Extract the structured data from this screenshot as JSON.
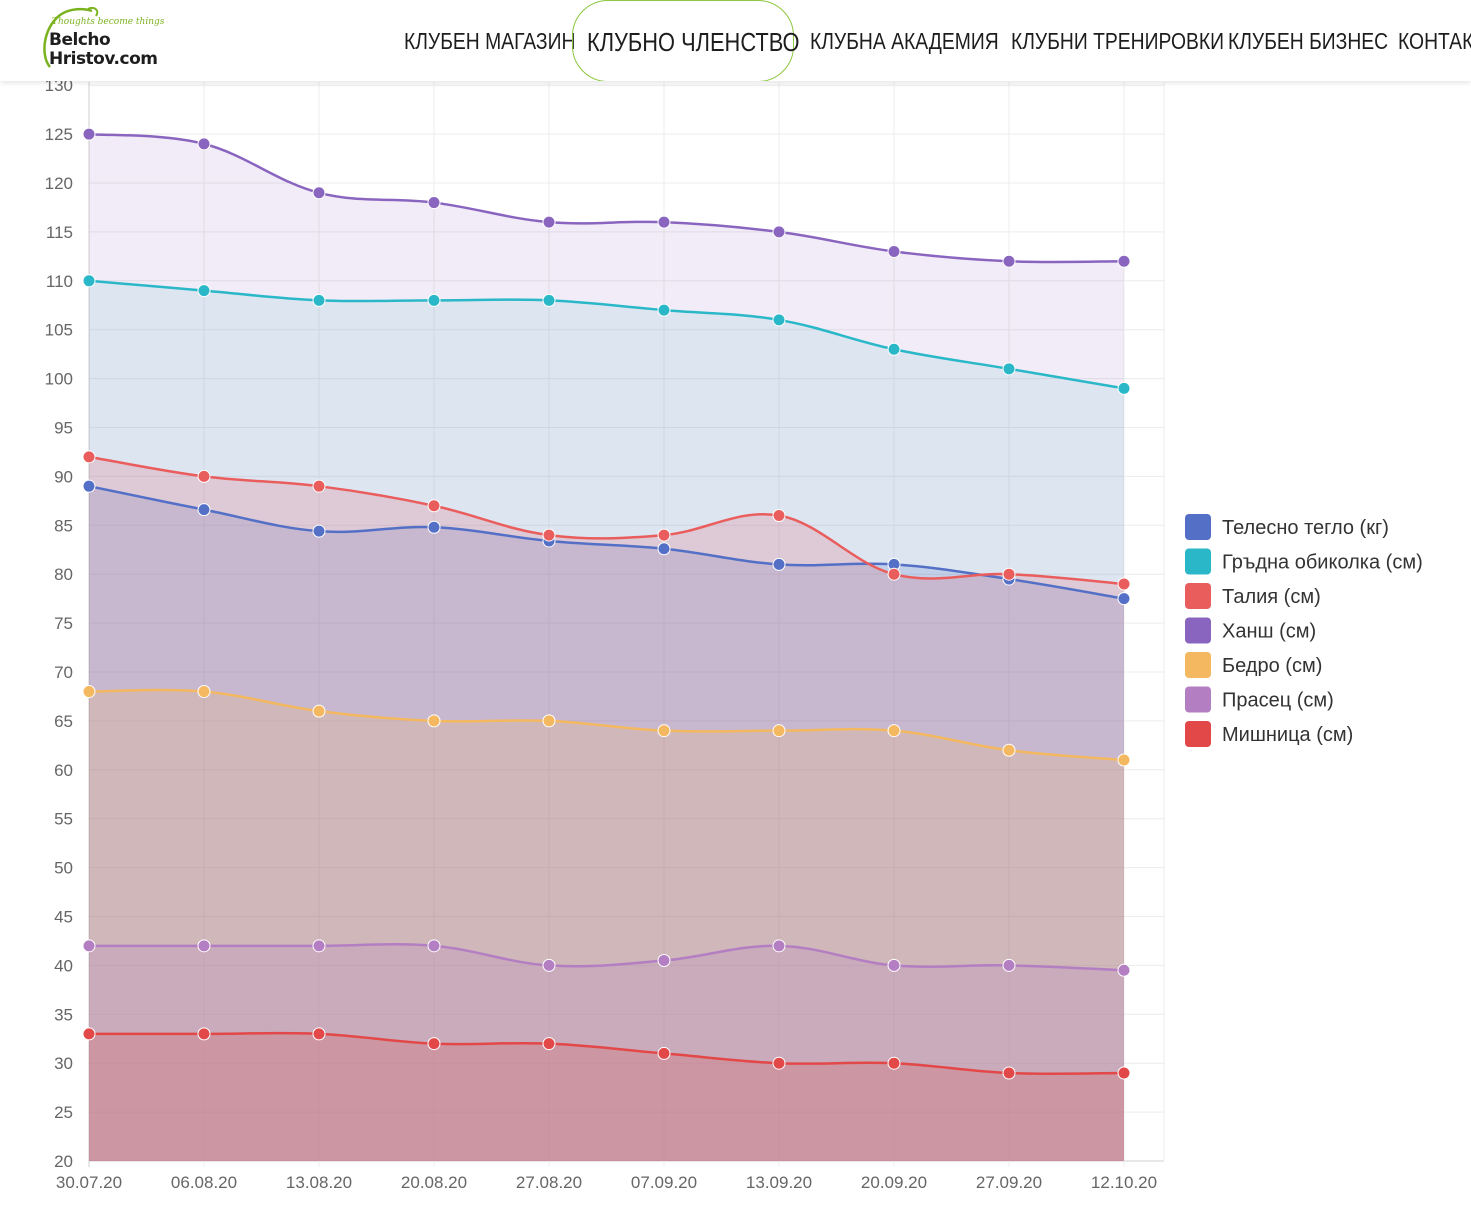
{
  "header": {
    "logo": {
      "tagline": "Thoughts become things",
      "line1": "Belcho",
      "line2": "Hristov.com"
    },
    "nav": [
      {
        "label": "КЛУБЕН МАГАЗИН",
        "active": false
      },
      {
        "label": "КЛУБНО ЧЛЕНСТВО",
        "active": true
      },
      {
        "label": "КЛУБНА АКАДЕМИЯ",
        "active": false
      },
      {
        "label": "КЛУБНИ ТРЕНИРОВКИ",
        "active": false
      },
      {
        "label": "КЛУБЕН БИЗНЕС",
        "active": false
      },
      {
        "label": "КОНТАКТ",
        "active": false
      }
    ]
  },
  "chart_data": {
    "type": "area",
    "categories": [
      "30.07.20",
      "06.08.20",
      "13.08.20",
      "20.08.20",
      "27.08.20",
      "07.09.20",
      "13.09.20",
      "20.09.20",
      "27.09.20",
      "12.10.20"
    ],
    "ylim": [
      20,
      130
    ],
    "yticks": [
      130,
      125,
      120,
      115,
      110,
      105,
      100,
      95,
      90,
      85,
      80,
      75,
      70,
      65,
      60,
      55,
      50,
      45,
      40,
      35,
      30,
      25,
      20
    ],
    "grid": true,
    "legend_position": "right",
    "series": [
      {
        "name": "Телесно тегло (кг)",
        "color": "#5470c6",
        "fill": "rgba(84,112,198,0.2)",
        "values": [
          89,
          86.6,
          84.4,
          84.8,
          83.4,
          82.6,
          81,
          81,
          79.5,
          77.5
        ]
      },
      {
        "name": "Гръдна обиколка (см)",
        "color": "#2ab8c8",
        "fill": "rgba(42,184,200,0.1)",
        "values": [
          110,
          109,
          108,
          108,
          108,
          107,
          106,
          103,
          101,
          99
        ]
      },
      {
        "name": "Талия (см)",
        "color": "#ea5d5d",
        "fill": "rgba(234,93,93,0.2)",
        "values": [
          92,
          90,
          89,
          87,
          84,
          84,
          86,
          80,
          80,
          79
        ]
      },
      {
        "name": "Ханш (см)",
        "color": "#8a65c0",
        "fill": "rgba(138,101,192,0.12)",
        "values": [
          125,
          124,
          119,
          118,
          116,
          116,
          115,
          113,
          112,
          112
        ]
      },
      {
        "name": "Бедро (см)",
        "color": "#f4b860",
        "fill": "rgba(244,184,96,0.18)",
        "values": [
          68,
          68,
          66,
          65,
          65,
          64,
          64,
          64,
          62,
          61
        ]
      },
      {
        "name": "Прасец (см)",
        "color": "#b47ec2",
        "fill": "rgba(180,126,194,0.2)",
        "values": [
          42,
          42,
          42,
          42,
          40,
          40.5,
          42,
          40,
          40,
          39.5
        ]
      },
      {
        "name": "Мишница (см)",
        "color": "#e34848",
        "fill": "rgba(227,72,72,0.2)",
        "values": [
          33,
          33,
          33,
          32,
          32,
          31,
          30,
          30,
          29,
          29
        ]
      }
    ]
  }
}
